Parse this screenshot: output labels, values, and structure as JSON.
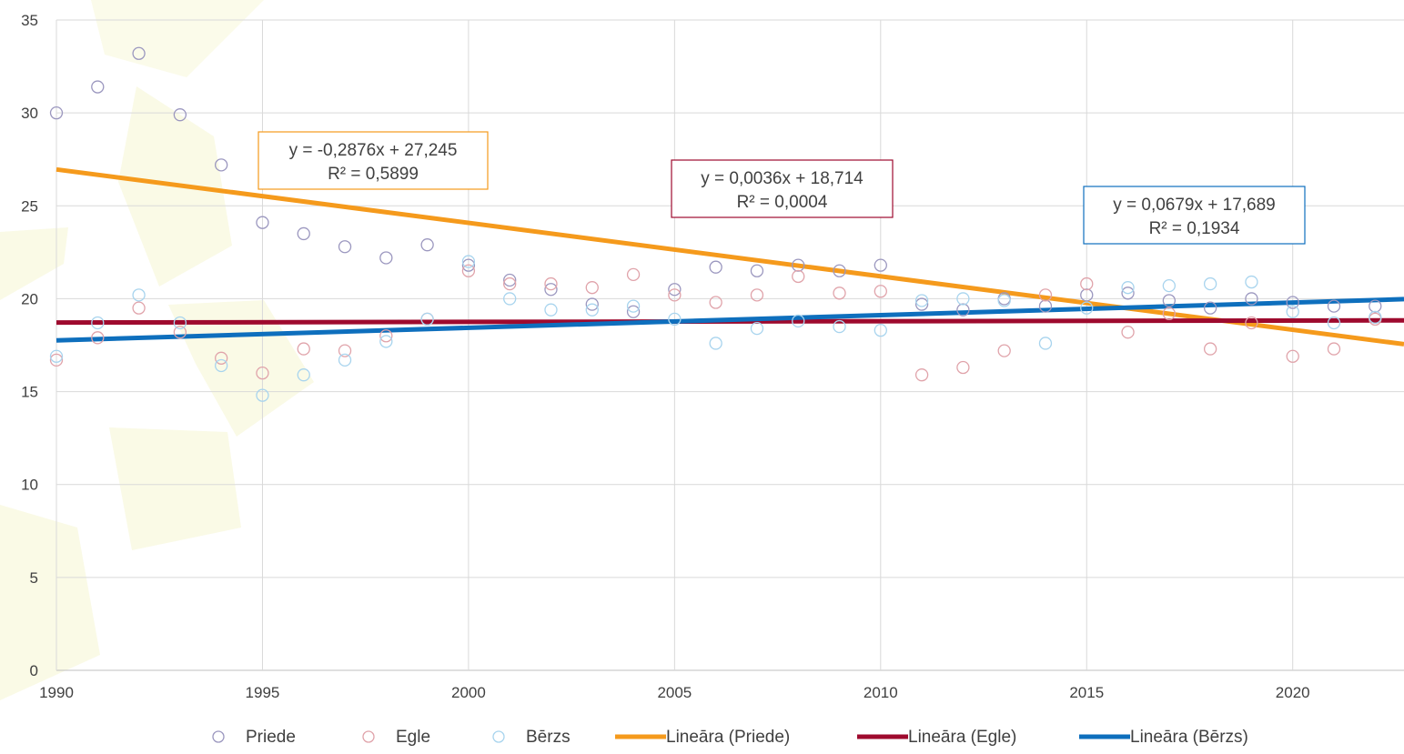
{
  "chart_data": {
    "type": "scatter",
    "title": "",
    "xlabel": "",
    "ylabel": "",
    "xlim": [
      1990,
      2022.7
    ],
    "ylim": [
      0,
      35
    ],
    "xticks": [
      "1990",
      "1995",
      "2000",
      "2005",
      "2010",
      "2015",
      "2020"
    ],
    "yticks": [
      "0",
      "5",
      "10",
      "15",
      "20",
      "25",
      "30",
      "35"
    ],
    "grid": true,
    "legend_position": "bottom",
    "x": [
      1990,
      1991,
      1992,
      1993,
      1994,
      1995,
      1996,
      1997,
      1998,
      1999,
      2000,
      2001,
      2002,
      2003,
      2004,
      2005,
      2006,
      2007,
      2008,
      2009,
      2010,
      2011,
      2012,
      2013,
      2014,
      2015,
      2016,
      2017,
      2018,
      2019,
      2020,
      2021,
      2022
    ],
    "series": [
      {
        "name": "Priede",
        "color": "#9b97bf",
        "values": [
          30.0,
          31.4,
          33.2,
          29.9,
          27.2,
          24.1,
          23.5,
          22.8,
          22.2,
          22.9,
          21.8,
          21.0,
          20.5,
          19.7,
          19.3,
          20.5,
          21.7,
          21.5,
          21.8,
          21.5,
          21.8,
          19.7,
          19.4,
          20.0,
          19.6,
          20.2,
          20.3,
          19.9,
          19.5,
          20.0,
          19.8,
          19.6,
          19.6
        ]
      },
      {
        "name": "Egle",
        "color": "#e0a3aa",
        "values": [
          16.7,
          17.9,
          19.5,
          18.2,
          16.8,
          16.0,
          17.3,
          17.2,
          18.0,
          18.9,
          21.5,
          20.8,
          20.8,
          20.6,
          21.3,
          20.2,
          19.8,
          20.2,
          21.2,
          20.3,
          20.4,
          15.9,
          16.3,
          17.2,
          20.2,
          20.8,
          18.2,
          19.2,
          17.3,
          18.7,
          16.9,
          17.3,
          18.9
        ]
      },
      {
        "name": "Bērzs",
        "color": "#a8d4ee",
        "values": [
          16.9,
          18.7,
          20.2,
          18.7,
          16.4,
          14.8,
          15.9,
          16.7,
          17.7,
          18.9,
          22.0,
          20.0,
          19.4,
          19.4,
          19.6,
          18.9,
          17.6,
          18.4,
          18.8,
          18.5,
          18.3,
          19.9,
          20.0,
          19.9,
          17.6,
          19.5,
          20.6,
          20.7,
          20.8,
          20.9,
          19.3,
          18.7,
          19.0
        ]
      }
    ],
    "trendlines": [
      {
        "name": "Lineāra (Priede)",
        "color": "#f59a1c",
        "slope": -0.2876,
        "intercept": 27.245,
        "equation": "y = -0,2876x + 27,245",
        "r2": "R² = 0,5899"
      },
      {
        "name": "Lineāra (Egle)",
        "color": "#9e0a2e",
        "slope": 0.0036,
        "intercept": 18.714,
        "equation": "y = 0,0036x + 18,714",
        "r2": "R² = 0,0004"
      },
      {
        "name": "Lineāra (Bērzs)",
        "color": "#0e6fbd",
        "slope": 0.0679,
        "intercept": 17.689,
        "equation": "y = 0,0679x + 17,689",
        "r2": "R² = 0,1934"
      }
    ]
  }
}
